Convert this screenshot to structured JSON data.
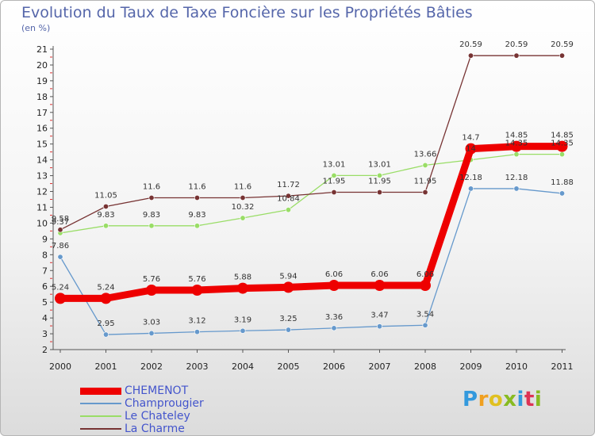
{
  "header": {
    "title": "Evolution du Taux de Taxe Foncière sur les Propriétés Bâties",
    "unit": "(en %)"
  },
  "branding": {
    "logo_text": "Proxiti"
  },
  "chart_data": {
    "type": "line",
    "title": "Evolution du Taux de Taxe Foncière sur les Propriétés Bâties",
    "ylabel": "(en %)",
    "categories": [
      "2000",
      "2001",
      "2002",
      "2003",
      "2004",
      "2005",
      "2006",
      "2007",
      "2008",
      "2009",
      "2010",
      "2011"
    ],
    "yticks": [
      2,
      3,
      4,
      5,
      6,
      7,
      8,
      9,
      10,
      11,
      12,
      13,
      14,
      15,
      16,
      17,
      18,
      19,
      20,
      21
    ],
    "ylim": [
      2,
      21
    ],
    "grid": false,
    "legend_position": "bottom-left",
    "series": [
      {
        "name": "CHEMENOT",
        "color": "#ee0000",
        "values": [
          5.24,
          5.24,
          5.76,
          5.76,
          5.88,
          5.94,
          6.06,
          6.06,
          6.06,
          14.7,
          14.85,
          14.85
        ],
        "labels": [
          "5.24",
          "5.24",
          "5.76",
          "5.76",
          "5.88",
          "5.94",
          "6.06",
          "6.06",
          "6.06",
          "14.7",
          "14.85",
          "14.85"
        ]
      },
      {
        "name": "Champrougier",
        "color": "#6699cc",
        "values": [
          7.86,
          2.95,
          3.03,
          3.12,
          3.19,
          3.25,
          3.36,
          3.47,
          3.54,
          12.18,
          12.18,
          11.88
        ],
        "labels": [
          "7.86",
          "2.95",
          "3.03",
          "3.12",
          "3.19",
          "3.25",
          "3.36",
          "3.47",
          "3.54",
          "12.18",
          "12.18",
          "11.88"
        ]
      },
      {
        "name": "Le Chateley",
        "color": "#99dd66",
        "values": [
          9.37,
          9.83,
          9.83,
          9.83,
          10.32,
          10.84,
          13.01,
          13.01,
          13.66,
          14,
          14.35,
          14.35
        ],
        "labels": [
          "9.37",
          "9.83",
          "9.83",
          "9.83",
          "10.32",
          "10.84",
          "13.01",
          "13.01",
          "13.66",
          "14",
          "14.35",
          "14.35"
        ]
      },
      {
        "name": "La Charme",
        "color": "#773333",
        "values": [
          9.58,
          11.05,
          11.6,
          11.6,
          11.6,
          11.72,
          11.95,
          11.95,
          11.95,
          20.59,
          20.59,
          20.59
        ],
        "labels": [
          "9.58",
          "11.05",
          "11.6",
          "11.6",
          "11.6",
          "11.72",
          "11.95",
          "11.95",
          "11.95",
          "20.59",
          "20.59",
          "20.59"
        ]
      }
    ]
  }
}
